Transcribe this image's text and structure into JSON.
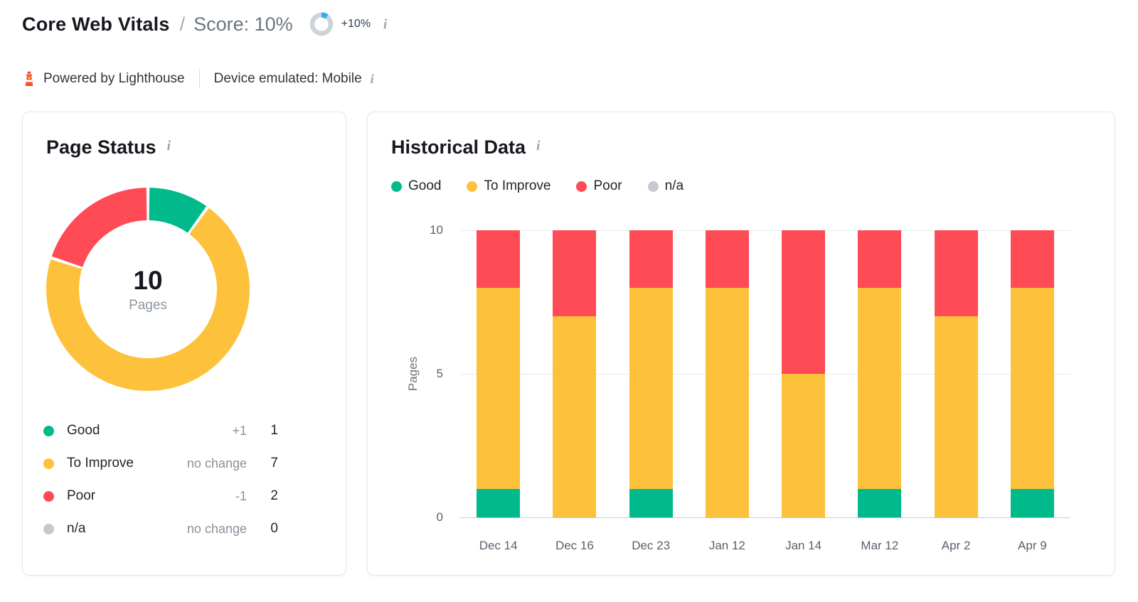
{
  "header": {
    "title": "Core Web Vitals",
    "separator": "/",
    "score_label": "Score: 10%",
    "score_percent": 10,
    "score_change": "+10%",
    "powered_by": "Powered by Lighthouse",
    "device": "Device emulated: Mobile"
  },
  "glyphs": {
    "info": "i"
  },
  "colors": {
    "good": "#00BA8C",
    "to_improve": "#FDC13C",
    "poor": "#FF4B55",
    "na": "#C4C9D0",
    "score_arc": "#35AEF0",
    "score_track": "#CDD3DB"
  },
  "page_status": {
    "title": "Page Status",
    "total": "10",
    "total_label": "Pages",
    "legend": [
      {
        "label": "Good",
        "change": "+1",
        "value": "1",
        "color_key": "good"
      },
      {
        "label": "To Improve",
        "change": "no change",
        "value": "7",
        "color_key": "to_improve"
      },
      {
        "label": "Poor",
        "change": "-1",
        "value": "2",
        "color_key": "poor"
      },
      {
        "label": "n/a",
        "change": "no change",
        "value": "0",
        "color_key": "na"
      }
    ]
  },
  "historical": {
    "title": "Historical Data",
    "legend": [
      "Good",
      "To Improve",
      "Poor",
      "n/a"
    ],
    "ylabel": "Pages",
    "yticks": [
      10,
      5,
      0
    ]
  },
  "chart_data": [
    {
      "type": "pie",
      "title": "Page Status",
      "labels": [
        "Good",
        "To Improve",
        "Poor",
        "n/a"
      ],
      "values": [
        1,
        7,
        2,
        0
      ],
      "changes": [
        "+1",
        "no change",
        "-1",
        "no change"
      ],
      "center_total": 10,
      "center_label": "Pages",
      "donut": true,
      "start_angle_deg": -90,
      "direction": "clockwise"
    },
    {
      "type": "bar",
      "stacked": true,
      "title": "Historical Data",
      "categories": [
        "Dec 14",
        "Dec 16",
        "Dec 23",
        "Jan 12",
        "Jan 14",
        "Mar 12",
        "Apr 2",
        "Apr 9"
      ],
      "series": [
        {
          "name": "Good",
          "color_key": "good",
          "values": [
            1,
            0,
            1,
            0,
            0,
            1,
            0,
            1
          ]
        },
        {
          "name": "To Improve",
          "color_key": "to_improve",
          "values": [
            7,
            7,
            7,
            8,
            5,
            7,
            7,
            7
          ]
        },
        {
          "name": "Poor",
          "color_key": "poor",
          "values": [
            2,
            3,
            2,
            2,
            5,
            2,
            3,
            2
          ]
        },
        {
          "name": "n/a",
          "color_key": "na",
          "values": [
            0,
            0,
            0,
            0,
            0,
            0,
            0,
            0
          ]
        }
      ],
      "xlabel": "",
      "ylabel": "Pages",
      "ylim": [
        0,
        10
      ],
      "yticks": [
        0,
        5,
        10
      ],
      "grid": true,
      "legend_position": "top"
    }
  ]
}
